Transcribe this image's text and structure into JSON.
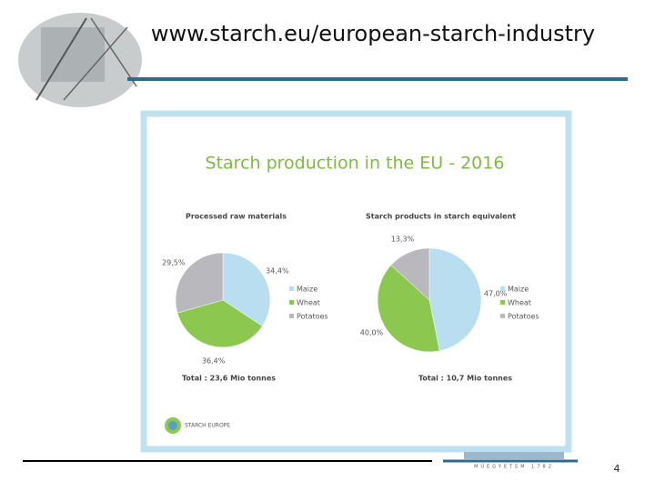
{
  "header": {
    "url": "www.starch.eu/european-starch-industry"
  },
  "page_number": "4",
  "figure_title": "Starch production in the EU - 2016",
  "logo_text": "STARCH EUROPE",
  "footer_logo": "MŰEGYETEM 1782",
  "chart_data": [
    {
      "type": "pie",
      "title": "Processed raw materials",
      "categories": [
        "Maize",
        "Wheat",
        "Potatoes"
      ],
      "values": [
        34.4,
        36.4,
        29.5
      ],
      "value_labels": [
        "34,4%",
        "36,4%",
        "29,5%"
      ],
      "colors": [
        "#b9def0",
        "#8cc850",
        "#b9b9bd"
      ],
      "annotation": "Total : 23,6 Mio tonnes"
    },
    {
      "type": "pie",
      "title": "Starch products in starch equivalent",
      "categories": [
        "Maize",
        "Wheat",
        "Potatoes"
      ],
      "values": [
        47.0,
        40.0,
        13.3
      ],
      "value_labels": [
        "47,0%",
        "40,0%",
        "13,3%"
      ],
      "colors": [
        "#b9def0",
        "#8cc850",
        "#b9b9bd"
      ],
      "annotation": "Total : 10,7 Mio tonnes"
    }
  ]
}
